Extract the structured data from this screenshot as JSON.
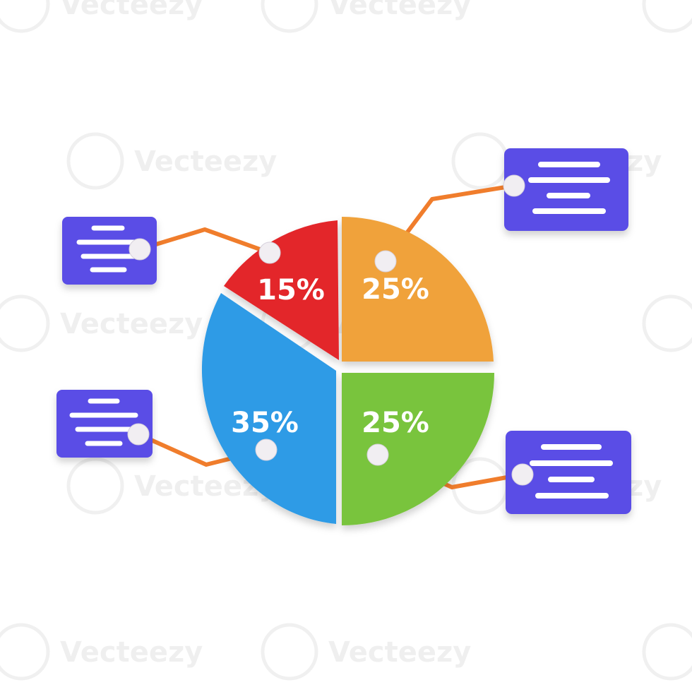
{
  "watermark": {
    "text": "Vecteezy"
  },
  "colors": {
    "red": "#e3262b",
    "orange": "#f0a23a",
    "blue": "#2d9be6",
    "green": "#79c43c",
    "card": "#5a4de6",
    "connector": "#f07d2c",
    "dot": "#f1eef2",
    "card_line": "#ffffff"
  },
  "chart_data": {
    "type": "pie",
    "slices": [
      {
        "label": "15%",
        "value": 15,
        "color": "#e3262b"
      },
      {
        "label": "25%",
        "value": 25,
        "color": "#f0a23a"
      },
      {
        "label": "25%",
        "value": 25,
        "color": "#79c43c"
      },
      {
        "label": "35%",
        "value": 35,
        "color": "#2d9be6"
      }
    ],
    "legend_cards": 4
  }
}
